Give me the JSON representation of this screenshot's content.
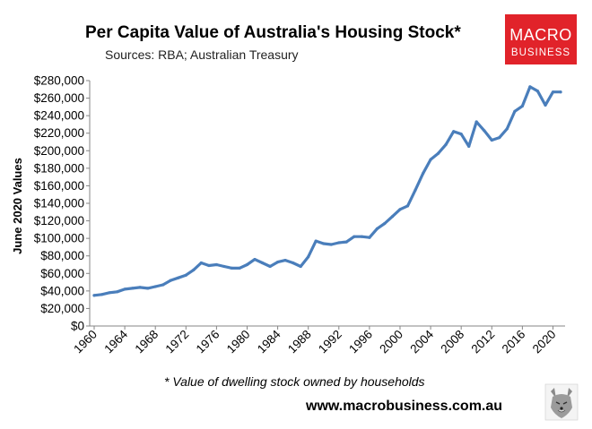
{
  "chart_data": {
    "type": "line",
    "title": "Per Capita Value of Australia's Housing Stock*",
    "subtitle": "Sources: RBA; Australian Treasury",
    "ylabel": "June 2020 Values",
    "xlabel": "",
    "footnote": "* Value of dwelling stock owned by households",
    "ylim": [
      0,
      280000
    ],
    "y_ticks": [
      "$0",
      "$20,000",
      "$40,000",
      "$60,000",
      "$80,000",
      "$100,000",
      "$120,000",
      "$140,000",
      "$160,000",
      "$180,000",
      "$200,000",
      "$220,000",
      "$240,000",
      "$260,000",
      "$280,000"
    ],
    "x_ticks": [
      "1960",
      "1964",
      "1968",
      "1972",
      "1976",
      "1980",
      "1984",
      "1988",
      "1992",
      "1996",
      "2000",
      "2004",
      "2008",
      "2012",
      "2016",
      "2020"
    ],
    "xlim": [
      1960,
      2021
    ],
    "grid": false,
    "color": "#4A7EBB",
    "series": [
      {
        "x": [
          1960,
          1961,
          1962,
          1963,
          1964,
          1965,
          1966,
          1967,
          1968,
          1969,
          1970,
          1971,
          1972,
          1973,
          1974,
          1975,
          1976,
          1977,
          1978,
          1979,
          1980,
          1981,
          1982,
          1983,
          1984,
          1985,
          1986,
          1987,
          1988,
          1989,
          1990,
          1991,
          1992,
          1993,
          1994,
          1995,
          1996,
          1997,
          1998,
          1999,
          2000,
          2001,
          2002,
          2003,
          2004,
          2005,
          2006,
          2007,
          2008,
          2009,
          2010,
          2011,
          2012,
          2013,
          2014,
          2015,
          2016,
          2017,
          2018,
          2019,
          2020,
          2021
        ],
        "values": [
          35000,
          36000,
          38000,
          39000,
          42000,
          43000,
          44000,
          43000,
          45000,
          47000,
          52000,
          55000,
          58000,
          64000,
          72000,
          69000,
          70000,
          68000,
          66000,
          66000,
          70000,
          76000,
          72000,
          68000,
          73000,
          75000,
          72000,
          68000,
          79000,
          97000,
          94000,
          93000,
          95000,
          96000,
          102000,
          102000,
          101000,
          111000,
          117000,
          125000,
          133000,
          137000,
          155000,
          174000,
          190000,
          197000,
          207000,
          222000,
          219000,
          205000,
          233000,
          223000,
          212000,
          215000,
          225000,
          245000,
          251000,
          273000,
          268000,
          252000,
          267000,
          267000
        ]
      }
    ]
  },
  "branding": {
    "logo_line1": "MACRO",
    "logo_line2": "BUSINESS",
    "logo_color": "#E1232A",
    "website": "www.macrobusiness.com.au",
    "mascot_icon": "wolf-icon"
  }
}
